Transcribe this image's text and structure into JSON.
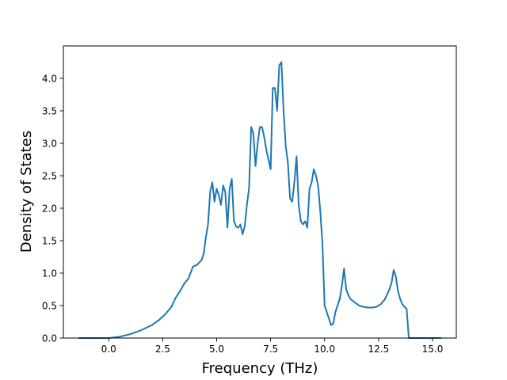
{
  "chart_data": {
    "type": "line",
    "title": "",
    "xlabel": "Frequency (THz)",
    "ylabel": "Density of States",
    "xlim": [
      -2.1,
      16.1
    ],
    "ylim": [
      0.0,
      4.5
    ],
    "xticks": [
      0.0,
      2.5,
      5.0,
      7.5,
      10.0,
      12.5,
      15.0
    ],
    "xtick_labels": [
      "0.0",
      "2.5",
      "5.0",
      "7.5",
      "10.0",
      "12.5",
      "15.0"
    ],
    "yticks": [
      0.0,
      0.5,
      1.0,
      1.5,
      2.0,
      2.5,
      3.0,
      3.5,
      4.0
    ],
    "ytick_labels": [
      "0.0",
      "0.5",
      "1.0",
      "1.5",
      "2.0",
      "2.5",
      "3.0",
      "3.5",
      "4.0"
    ],
    "grid": false,
    "legend": false,
    "series": [
      {
        "color": "#1f77b4",
        "x": [
          -1.4,
          -0.6,
          0.0,
          0.5,
          1.0,
          1.5,
          2.0,
          2.3,
          2.6,
          2.9,
          3.1,
          3.3,
          3.5,
          3.7,
          3.9,
          4.1,
          4.3,
          4.4,
          4.5,
          4.6,
          4.7,
          4.8,
          4.9,
          5.0,
          5.1,
          5.2,
          5.3,
          5.4,
          5.5,
          5.6,
          5.7,
          5.8,
          5.9,
          6.0,
          6.1,
          6.2,
          6.3,
          6.4,
          6.5,
          6.6,
          6.7,
          6.8,
          6.9,
          7.0,
          7.1,
          7.2,
          7.3,
          7.4,
          7.5,
          7.6,
          7.7,
          7.8,
          7.9,
          8.0,
          8.1,
          8.2,
          8.3,
          8.4,
          8.5,
          8.6,
          8.7,
          8.8,
          8.9,
          9.0,
          9.1,
          9.2,
          9.3,
          9.4,
          9.5,
          9.6,
          9.7,
          9.8,
          9.9,
          10.0,
          10.1,
          10.2,
          10.3,
          10.4,
          10.5,
          10.6,
          10.7,
          10.8,
          10.9,
          11.0,
          11.1,
          11.2,
          11.4,
          11.6,
          11.8,
          12.0,
          12.2,
          12.4,
          12.6,
          12.8,
          13.0,
          13.1,
          13.2,
          13.3,
          13.4,
          13.5,
          13.6,
          13.7,
          13.8,
          13.9,
          14.0,
          14.1,
          14.5,
          15.0,
          15.4
        ],
        "values": [
          0.0,
          0.0,
          0.0,
          0.02,
          0.06,
          0.12,
          0.2,
          0.27,
          0.36,
          0.48,
          0.62,
          0.72,
          0.84,
          0.92,
          1.1,
          1.13,
          1.2,
          1.3,
          1.55,
          1.75,
          2.25,
          2.4,
          2.1,
          2.3,
          2.2,
          2.05,
          2.35,
          2.25,
          1.7,
          2.3,
          2.45,
          1.8,
          1.72,
          1.7,
          1.75,
          1.6,
          1.72,
          2.05,
          2.3,
          3.25,
          3.15,
          2.65,
          3.0,
          3.25,
          3.25,
          3.1,
          2.9,
          2.75,
          2.6,
          3.85,
          3.85,
          3.5,
          4.2,
          4.25,
          3.5,
          2.95,
          2.7,
          2.15,
          2.1,
          2.4,
          2.8,
          2.05,
          1.8,
          1.75,
          1.8,
          1.7,
          2.3,
          2.4,
          2.6,
          2.5,
          2.35,
          1.95,
          1.45,
          0.5,
          0.4,
          0.3,
          0.2,
          0.22,
          0.4,
          0.5,
          0.6,
          0.8,
          1.07,
          0.75,
          0.66,
          0.6,
          0.55,
          0.5,
          0.48,
          0.47,
          0.47,
          0.48,
          0.52,
          0.6,
          0.75,
          0.85,
          1.05,
          0.95,
          0.72,
          0.6,
          0.52,
          0.48,
          0.45,
          0.0,
          0.0,
          0.0,
          0.0,
          0.0,
          0.0
        ]
      }
    ]
  }
}
